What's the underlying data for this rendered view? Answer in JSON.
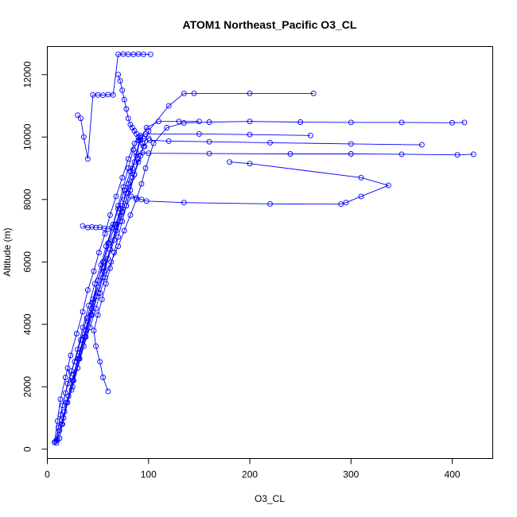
{
  "chart_data": {
    "type": "line",
    "title": "ATOM1 Northeast_Pacific O3_CL",
    "xlabel": "O3_CL",
    "ylabel": "Altitude (m)",
    "xlim": [
      0,
      440
    ],
    "ylim": [
      -300,
      12900
    ],
    "x_ticks": [
      0,
      100,
      200,
      300,
      400
    ],
    "y_ticks": [
      0,
      2000,
      4000,
      6000,
      8000,
      10000,
      12000
    ],
    "grid": false,
    "marker": "open-circle",
    "color": "#0000ff",
    "series": [
      {
        "x": [
          9,
          12,
          17,
          24,
          30,
          36,
          42,
          48,
          52,
          57,
          63,
          70,
          76,
          82,
          88,
          93,
          97,
          105,
          118,
          135,
          160,
          200,
          250,
          300,
          350,
          400,
          412
        ],
        "y": [
          200,
          600,
          1200,
          1900,
          2600,
          3300,
          3900,
          4500,
          5000,
          5500,
          6000,
          6500,
          7000,
          7500,
          8000,
          8500,
          9000,
          9800,
          10300,
          10450,
          10480,
          10500,
          10480,
          10470,
          10470,
          10460,
          10470
        ]
      },
      {
        "x": [
          8,
          11,
          15,
          20,
          27,
          33,
          39,
          45,
          50,
          56,
          61,
          67,
          73,
          78,
          84,
          90,
          95,
          101,
          120,
          160,
          220,
          300,
          370
        ],
        "y": [
          250,
          700,
          1400,
          2100,
          2800,
          3500,
          4200,
          4800,
          5400,
          6000,
          6600,
          7200,
          7700,
          8200,
          8700,
          9200,
          9700,
          9900,
          9870,
          9850,
          9820,
          9780,
          9750
        ]
      },
      {
        "x": [
          10,
          14,
          19,
          25,
          31,
          37,
          43,
          49,
          55,
          60,
          66,
          72,
          78,
          83,
          88,
          93,
          98,
          135,
          220,
          290,
          295,
          310,
          337,
          310,
          200,
          180
        ],
        "y": [
          300,
          800,
          1500,
          2200,
          2900,
          3600,
          4300,
          4900,
          5500,
          6100,
          6700,
          7300,
          7800,
          8100,
          8050,
          8000,
          7950,
          7900,
          7860,
          7850,
          7900,
          8100,
          8450,
          8700,
          9150,
          9200
        ]
      },
      {
        "x": [
          7,
          10,
          13,
          18,
          23,
          29,
          35,
          40,
          46,
          51,
          57,
          62,
          68,
          74,
          80,
          86,
          92,
          97,
          150,
          200,
          260
        ],
        "y": [
          220,
          900,
          1600,
          2300,
          3000,
          3700,
          4400,
          5100,
          5700,
          6300,
          6900,
          7500,
          8100,
          8700,
          9300,
          9800,
          10050,
          10100,
          10100,
          10080,
          10050
        ]
      },
      {
        "x": [
          12,
          16,
          21,
          26,
          32,
          38,
          44,
          50,
          56,
          62,
          68,
          74,
          80,
          86,
          92,
          100,
          120,
          135,
          145,
          200,
          263
        ],
        "y": [
          350,
          1000,
          1700,
          2400,
          3100,
          3800,
          4500,
          5200,
          5800,
          6400,
          7000,
          7600,
          8200,
          8800,
          9400,
          10200,
          11000,
          11400,
          11400,
          11400,
          11400
        ]
      },
      {
        "x": [
          9,
          13,
          18,
          24,
          30,
          35,
          41,
          47,
          53,
          58,
          64,
          70,
          76,
          82,
          88,
          94,
          100,
          160,
          240,
          300,
          350,
          405,
          421
        ],
        "y": [
          280,
          1100,
          1800,
          2500,
          3200,
          3900,
          4600,
          5300,
          5900,
          6500,
          7100,
          7700,
          8300,
          8900,
          9400,
          9500,
          9480,
          9470,
          9460,
          9460,
          9450,
          9430,
          9450
        ]
      },
      {
        "x": [
          30,
          33,
          36,
          40,
          45,
          50,
          55,
          60,
          65,
          70,
          75,
          80,
          85,
          90,
          95,
          102
        ],
        "y": [
          10700,
          10600,
          10000,
          9300,
          11350,
          11350,
          11340,
          11360,
          11350,
          12650,
          12660,
          12650,
          12650,
          12660,
          12650,
          12650
        ]
      },
      {
        "x": [
          15,
          20,
          26,
          32,
          38,
          44,
          50,
          56,
          62,
          68,
          74,
          80,
          86,
          92,
          98,
          110,
          130,
          150
        ],
        "y": [
          800,
          1500,
          2200,
          2900,
          3600,
          4300,
          5000,
          5700,
          6400,
          7100,
          7800,
          8500,
          9200,
          9900,
          10300,
          10500,
          10500,
          10500
        ]
      },
      {
        "x": [
          20,
          25,
          30,
          35,
          40,
          45,
          50,
          55,
          60,
          65,
          70,
          75,
          80,
          85,
          90,
          95,
          100
        ],
        "y": [
          2600,
          2000,
          2900,
          3500,
          4100,
          4700,
          5400,
          6000,
          6600,
          7200,
          7800,
          8400,
          9000,
          9600,
          9900,
          9950,
          9960
        ]
      },
      {
        "x": [
          60,
          55,
          52,
          48,
          46,
          50,
          54,
          58,
          62,
          66,
          70,
          74,
          78,
          82,
          86,
          90
        ],
        "y": [
          1850,
          2300,
          2800,
          3300,
          3800,
          4300,
          4800,
          5300,
          5800,
          6300,
          6800,
          7300,
          7800,
          8300,
          8800,
          9300
        ]
      },
      {
        "x": [
          35,
          40,
          44,
          48,
          52,
          56,
          60,
          64,
          68,
          72,
          76,
          80,
          84,
          88,
          92
        ],
        "y": [
          7150,
          7100,
          7120,
          7100,
          7110,
          7080,
          7050,
          7100,
          7200,
          7500,
          8000,
          8500,
          9000,
          9500,
          10000
        ]
      },
      {
        "x": [
          70,
          72,
          74,
          76,
          78,
          80,
          82,
          84,
          86,
          88,
          90,
          92,
          94,
          96
        ],
        "y": [
          12000,
          11800,
          11500,
          11200,
          10900,
          10600,
          10400,
          10300,
          10200,
          10100,
          10000,
          9900,
          9800,
          9700
        ]
      }
    ]
  }
}
